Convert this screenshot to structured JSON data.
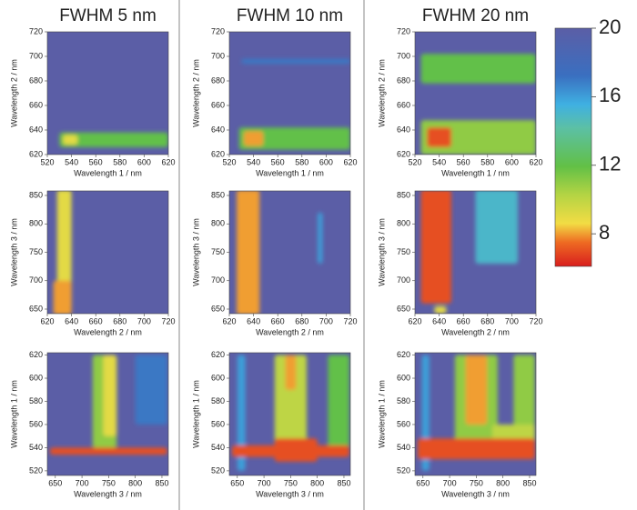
{
  "column_titles": [
    "FWHM 5 nm",
    "FWHM 10 nm",
    "FWHM 20 nm"
  ],
  "colorbar": {
    "lim": [
      6.1,
      20
    ],
    "ticks": [
      8,
      12,
      16,
      20
    ]
  },
  "chart_data": [
    {
      "type": "heatmap",
      "xlabel": "Wavelength 1 / nm",
      "ylabel": "Wavelength 2 / nm",
      "xlim": [
        520,
        620
      ],
      "ylim": [
        620,
        720
      ],
      "xticks": [
        520,
        540,
        560,
        580,
        600,
        620
      ],
      "yticks": [
        620,
        640,
        660,
        680,
        700,
        720
      ],
      "background_value": 20,
      "features": [
        {
          "x": [
            530,
            620
          ],
          "y": [
            626,
            638
          ],
          "value": 12
        },
        {
          "x": [
            533,
            545
          ],
          "y": [
            628,
            636
          ],
          "value": 9
        }
      ]
    },
    {
      "type": "heatmap",
      "xlabel": "Wavelength 1 / nm",
      "ylabel": "Wavelength 2 / nm",
      "xlim": [
        520,
        620
      ],
      "ylim": [
        620,
        720
      ],
      "xticks": [
        520,
        540,
        560,
        580,
        600,
        620
      ],
      "yticks": [
        620,
        640,
        660,
        680,
        700,
        720
      ],
      "background_value": 20,
      "features": [
        {
          "x": [
            528,
            620
          ],
          "y": [
            624,
            642
          ],
          "value": 12
        },
        {
          "x": [
            532,
            548
          ],
          "y": [
            627,
            639
          ],
          "value": 8
        },
        {
          "x": [
            530,
            620
          ],
          "y": [
            694,
            698
          ],
          "value": 17
        }
      ]
    },
    {
      "type": "heatmap",
      "xlabel": "Wavelength 1 / nm",
      "ylabel": "Wavelength 2 / nm",
      "xlim": [
        520,
        620
      ],
      "ylim": [
        620,
        720
      ],
      "xticks": [
        520,
        540,
        560,
        580,
        600,
        620
      ],
      "yticks": [
        620,
        640,
        660,
        680,
        700,
        720
      ],
      "background_value": 20,
      "features": [
        {
          "x": [
            525,
            620
          ],
          "y": [
            620,
            648
          ],
          "value": 11
        },
        {
          "x": [
            530,
            550
          ],
          "y": [
            626,
            642
          ],
          "value": 7
        },
        {
          "x": [
            525,
            620
          ],
          "y": [
            678,
            702
          ],
          "value": 12
        }
      ]
    },
    {
      "type": "heatmap",
      "xlabel": "Wavelength 2 / nm",
      "ylabel": "Wavelength 3 / nm",
      "xlim": [
        620,
        720
      ],
      "ylim": [
        642,
        858
      ],
      "xticks": [
        620,
        640,
        660,
        680,
        700,
        720
      ],
      "yticks": [
        650,
        700,
        750,
        800,
        850
      ],
      "background_value": 20,
      "features": [
        {
          "x": [
            628,
            640
          ],
          "y": [
            650,
            860
          ],
          "value": 9
        },
        {
          "x": [
            625,
            640
          ],
          "y": [
            640,
            700
          ],
          "value": 8
        }
      ]
    },
    {
      "type": "heatmap",
      "xlabel": "Wavelength 2 / nm",
      "ylabel": "Wavelength 3 / nm",
      "xlim": [
        620,
        720
      ],
      "ylim": [
        642,
        858
      ],
      "xticks": [
        620,
        640,
        660,
        680,
        700,
        720
      ],
      "yticks": [
        650,
        700,
        750,
        800,
        850
      ],
      "background_value": 20,
      "features": [
        {
          "x": [
            626,
            645
          ],
          "y": [
            640,
            860
          ],
          "value": 8
        },
        {
          "x": [
            693,
            697
          ],
          "y": [
            730,
            820
          ],
          "value": 16
        }
      ]
    },
    {
      "type": "heatmap",
      "xlabel": "Wavelength 2 / nm",
      "ylabel": "Wavelength 3 / nm",
      "xlim": [
        620,
        720
      ],
      "ylim": [
        642,
        858
      ],
      "xticks": [
        620,
        640,
        660,
        680,
        700,
        720
      ],
      "yticks": [
        650,
        700,
        750,
        800,
        850
      ],
      "background_value": 20,
      "features": [
        {
          "x": [
            625,
            650
          ],
          "y": [
            660,
            860
          ],
          "value": 7
        },
        {
          "x": [
            670,
            705
          ],
          "y": [
            730,
            860
          ],
          "value": 15
        },
        {
          "x": [
            636,
            646
          ],
          "y": [
            642,
            655
          ],
          "value": 9
        }
      ]
    },
    {
      "type": "heatmap",
      "xlabel": "Wavelength 3 / nm",
      "ylabel": "Wavelength 1 / nm",
      "xlim": [
        635,
        862
      ],
      "ylim": [
        516,
        622
      ],
      "xticks": [
        650,
        700,
        750,
        800,
        850
      ],
      "yticks": [
        520,
        540,
        560,
        580,
        600,
        620
      ],
      "background_value": 20,
      "features": [
        {
          "x": [
            800,
            860
          ],
          "y": [
            560,
            620
          ],
          "value": 17
        },
        {
          "x": [
            720,
            765
          ],
          "y": [
            540,
            620
          ],
          "value": 11
        },
        {
          "x": [
            740,
            765
          ],
          "y": [
            550,
            620
          ],
          "value": 9
        },
        {
          "x": [
            640,
            860
          ],
          "y": [
            534,
            540
          ],
          "value": 7
        }
      ]
    },
    {
      "type": "heatmap",
      "xlabel": "Wavelength 3 / nm",
      "ylabel": "Wavelength 1 / nm",
      "xlim": [
        635,
        862
      ],
      "ylim": [
        516,
        622
      ],
      "xticks": [
        650,
        700,
        750,
        800,
        850
      ],
      "yticks": [
        520,
        540,
        560,
        580,
        600,
        620
      ],
      "background_value": 20,
      "features": [
        {
          "x": [
            650,
            665
          ],
          "y": [
            520,
            620
          ],
          "value": 16
        },
        {
          "x": [
            820,
            860
          ],
          "y": [
            540,
            620
          ],
          "value": 12
        },
        {
          "x": [
            720,
            780
          ],
          "y": [
            540,
            620
          ],
          "value": 10
        },
        {
          "x": [
            740,
            760
          ],
          "y": [
            590,
            620
          ],
          "value": 8
        },
        {
          "x": [
            640,
            860
          ],
          "y": [
            532,
            542
          ],
          "value": 7
        },
        {
          "x": [
            720,
            800
          ],
          "y": [
            528,
            548
          ],
          "value": 7
        }
      ]
    },
    {
      "type": "heatmap",
      "xlabel": "Wavelength 3 / nm",
      "ylabel": "Wavelength 1 / nm",
      "xlim": [
        635,
        862
      ],
      "ylim": [
        516,
        622
      ],
      "xticks": [
        650,
        700,
        750,
        800,
        850
      ],
      "yticks": [
        520,
        540,
        560,
        580,
        600,
        620
      ],
      "background_value": 20,
      "features": [
        {
          "x": [
            648,
            662
          ],
          "y": [
            520,
            620
          ],
          "value": 16
        },
        {
          "x": [
            820,
            860
          ],
          "y": [
            540,
            620
          ],
          "value": 11
        },
        {
          "x": [
            710,
            790
          ],
          "y": [
            540,
            620
          ],
          "value": 11
        },
        {
          "x": [
            780,
            860
          ],
          "y": [
            540,
            560
          ],
          "value": 10
        },
        {
          "x": [
            730,
            770
          ],
          "y": [
            560,
            620
          ],
          "value": 8
        },
        {
          "x": [
            640,
            860
          ],
          "y": [
            530,
            548
          ],
          "value": 7
        }
      ]
    }
  ]
}
